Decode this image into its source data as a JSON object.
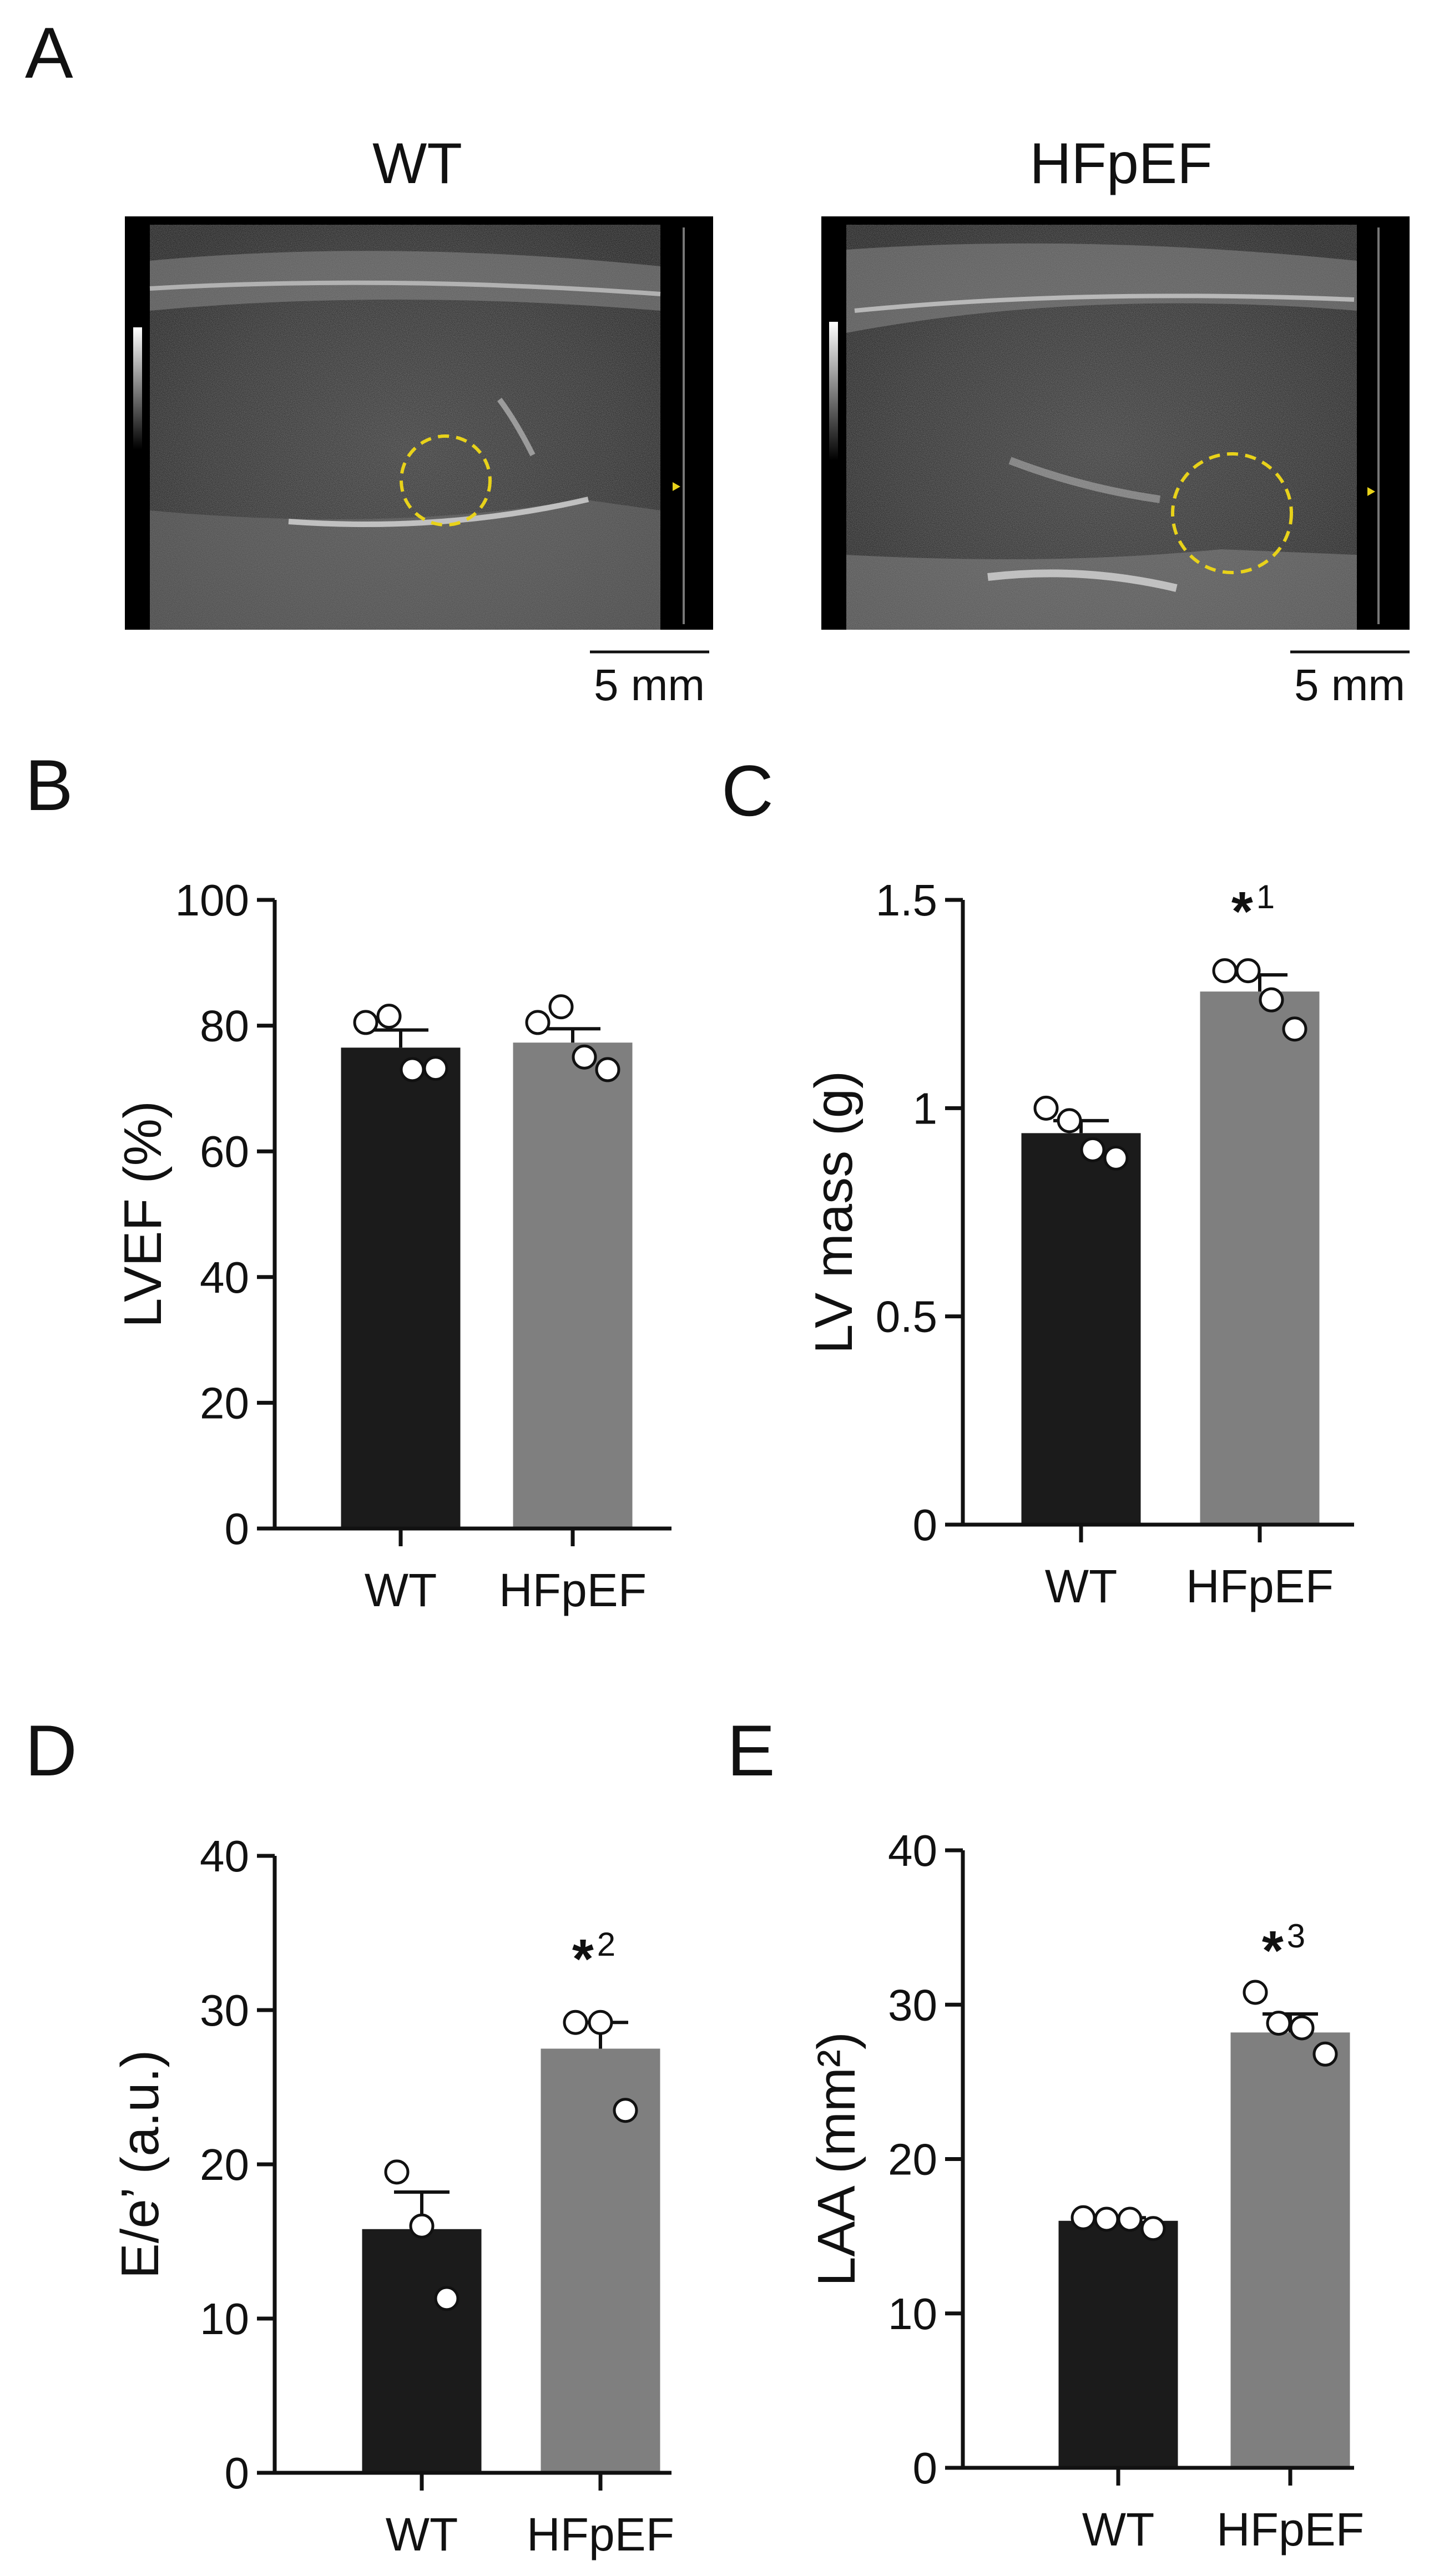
{
  "panel_a": {
    "letter": "A",
    "images": [
      {
        "title": "WT",
        "scale_bar": "5 mm",
        "roi_color": "#e8d21a"
      },
      {
        "title": "HFpEF",
        "scale_bar": "5 mm",
        "roi_color": "#e8d21a"
      }
    ]
  },
  "colors": {
    "wt": "#1b1b1b",
    "hfpef": "#7f7f7f",
    "point_fill": "#ffffff",
    "axis": "#111111"
  },
  "chart_data": [
    {
      "panel": "B",
      "type": "bar",
      "categories": [
        "WT",
        "HFpEF"
      ],
      "values": [
        76.5,
        77.3
      ],
      "sem": [
        2.8,
        2.2
      ],
      "points": [
        [
          80.5,
          81.5,
          73.0,
          73.2
        ],
        [
          80.5,
          83.0,
          75.0,
          73.0
        ]
      ],
      "ylabel": "LVEF (%)",
      "ylim": [
        0,
        100
      ],
      "yticks": [
        0,
        20,
        40,
        60,
        80,
        100
      ],
      "ytick_labels": [
        "0",
        "20",
        "40",
        "60",
        "80",
        "100"
      ],
      "significance": [
        "",
        ""
      ],
      "significance_sup": [
        "",
        ""
      ]
    },
    {
      "panel": "C",
      "type": "bar",
      "categories": [
        "WT",
        "HFpEF"
      ],
      "values": [
        0.94,
        1.28
      ],
      "sem": [
        0.03,
        0.04
      ],
      "points": [
        [
          1.0,
          0.97,
          0.9,
          0.88
        ],
        [
          1.33,
          1.33,
          1.26,
          1.19
        ]
      ],
      "ylabel": "LV mass (g)",
      "ylim": [
        0,
        1.5
      ],
      "yticks": [
        0,
        0.5,
        1,
        1.5
      ],
      "ytick_labels": [
        "0",
        "0.5",
        "1",
        "1.5"
      ],
      "significance": [
        "",
        "*"
      ],
      "significance_sup": [
        "",
        "1"
      ]
    },
    {
      "panel": "D",
      "type": "bar",
      "categories": [
        "WT",
        "HFpEF"
      ],
      "values": [
        15.8,
        27.5
      ],
      "sem": [
        2.4,
        1.7
      ],
      "points": [
        [
          19.5,
          16.0,
          11.3
        ],
        [
          29.2,
          29.2,
          23.5
        ]
      ],
      "ylabel": "E/e’ (a.u.)",
      "ylim": [
        0,
        40
      ],
      "yticks": [
        0,
        10,
        20,
        30,
        40
      ],
      "ytick_labels": [
        "0",
        "10",
        "20",
        "30",
        "40"
      ],
      "significance": [
        "",
        "*"
      ],
      "significance_sup": [
        "",
        "2"
      ]
    },
    {
      "panel": "E",
      "type": "bar",
      "categories": [
        "WT",
        "HFpEF"
      ],
      "values": [
        16.0,
        28.2
      ],
      "sem": [
        0.2,
        1.2
      ],
      "points": [
        [
          16.2,
          16.1,
          16.1,
          15.5
        ],
        [
          30.8,
          28.8,
          28.5,
          26.8
        ]
      ],
      "ylabel": "LAA (mm²)",
      "ylim": [
        0,
        40
      ],
      "yticks": [
        0,
        10,
        20,
        30,
        40
      ],
      "ytick_labels": [
        "0",
        "10",
        "20",
        "30",
        "40"
      ],
      "significance": [
        "",
        "*"
      ],
      "significance_sup": [
        "",
        "3"
      ]
    }
  ]
}
